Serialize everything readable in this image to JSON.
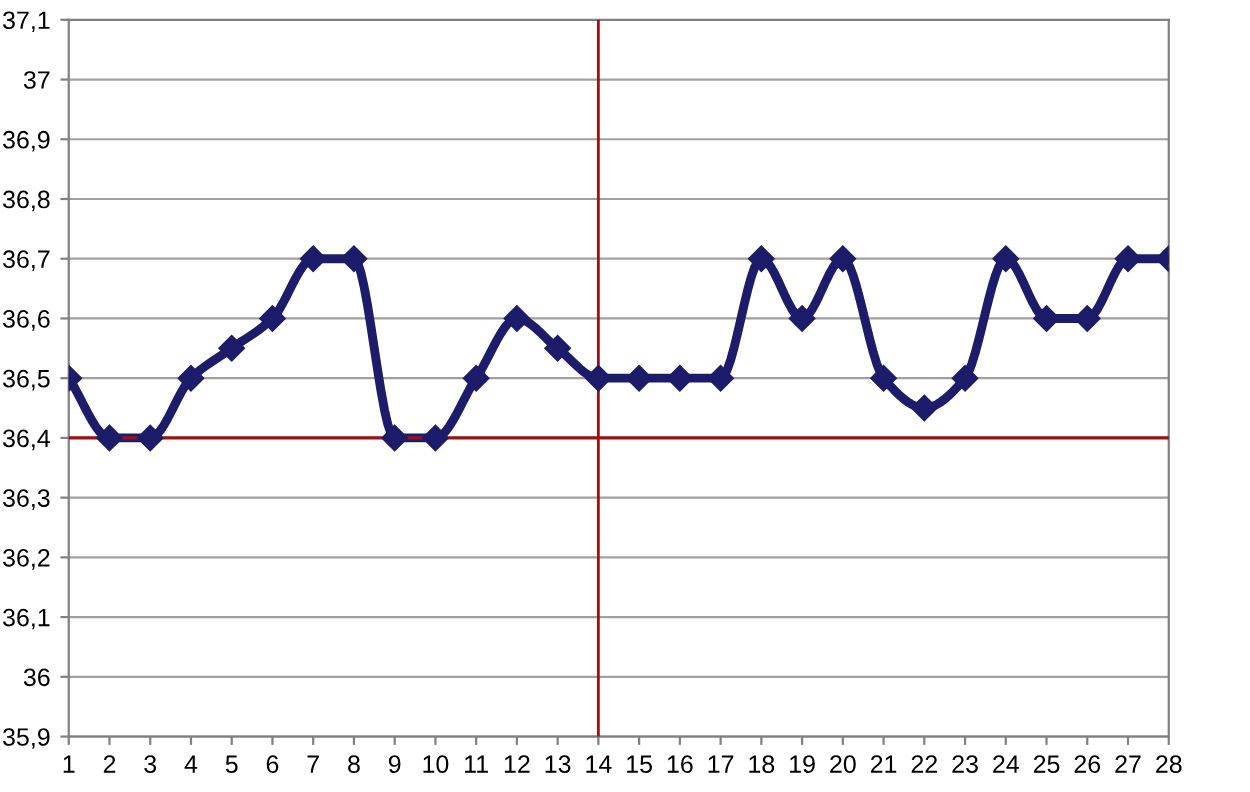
{
  "chart_data": {
    "type": "line",
    "x": [
      1,
      2,
      3,
      4,
      5,
      6,
      7,
      8,
      9,
      10,
      11,
      12,
      13,
      14,
      15,
      16,
      17,
      18,
      19,
      20,
      21,
      22,
      23,
      24,
      25,
      26,
      27,
      28
    ],
    "series": [
      {
        "color": "#1c1c6b",
        "values": [
          36.5,
          36.4,
          36.4,
          36.5,
          36.55,
          36.6,
          36.7,
          36.7,
          36.4,
          36.4,
          36.5,
          36.6,
          36.55,
          36.5,
          36.5,
          36.5,
          36.5,
          36.7,
          36.6,
          36.7,
          36.5,
          36.45,
          36.5,
          36.7,
          36.6,
          36.6,
          36.7,
          36.7
        ]
      }
    ],
    "xlim": [
      1,
      28
    ],
    "xticks": [
      1,
      2,
      3,
      4,
      5,
      6,
      7,
      8,
      9,
      10,
      11,
      12,
      13,
      14,
      15,
      16,
      17,
      18,
      19,
      20,
      21,
      22,
      23,
      24,
      25,
      26,
      27,
      28
    ],
    "ylim": [
      35.9,
      37.1
    ],
    "yticks": [
      {
        "value": 35.9,
        "label": "35,9"
      },
      36,
      {
        "value": 36.1,
        "label": "36,1"
      },
      {
        "value": 36.2,
        "label": "36,2"
      },
      {
        "value": 36.3,
        "label": "36,3"
      },
      {
        "value": 36.4,
        "label": "36,4"
      },
      {
        "value": 36.5,
        "label": "36,5"
      },
      {
        "value": 36.6,
        "label": "36,6"
      },
      {
        "value": 36.7,
        "label": "36,7"
      },
      {
        "value": 36.8,
        "label": "36,8"
      },
      {
        "value": 36.9,
        "label": "36,9"
      },
      37,
      {
        "value": 37.1,
        "label": "37,1"
      }
    ],
    "ref_lines": [
      {
        "axis": "y",
        "value": 36.4,
        "color": "#a01010"
      },
      {
        "axis": "x",
        "value": 14,
        "color": "#a01010"
      }
    ],
    "grid": "y",
    "marker": "diamond",
    "line_style": "solid"
  }
}
